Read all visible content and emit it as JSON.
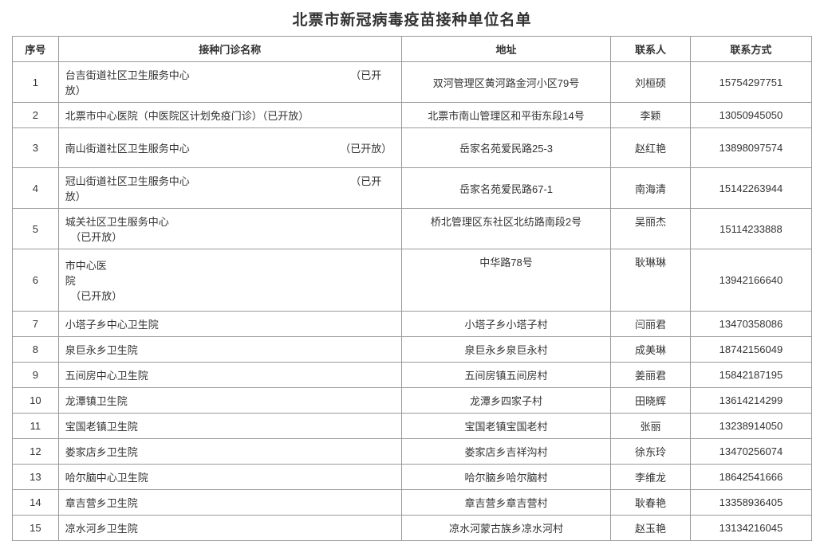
{
  "title": "北票市新冠病毒疫苗接种单位名单",
  "columns": [
    "序号",
    "接种门诊名称",
    "地址",
    "联系人",
    "联系方式"
  ],
  "rows": [
    {
      "seq": "1",
      "rowH": "tall2",
      "name": "台吉街道社区卫生服务中心　　　　　　　　　　　　　　　　（已开放）",
      "addr": "双河管理区黄河路金河小区79号",
      "contact": "刘桓硕",
      "phone": "15754297751"
    },
    {
      "seq": "2",
      "rowH": "",
      "name": "北票市中心医院（中医院区计划免疫门诊）（已开放）",
      "addr": "北票市南山管理区和平街东段14号",
      "contact": "李颖",
      "phone": "13050945050"
    },
    {
      "seq": "3",
      "rowH": "tall2",
      "name": "南山街道社区卫生服务中心　　　　　　　　　　　　　　　（已开放）",
      "addr": "岳家名苑爱民路25-3",
      "contact": "赵红艳",
      "phone": "13898097574"
    },
    {
      "seq": "4",
      "rowH": "tall2",
      "name": "冠山街道社区卫生服务中心　　　　　　　　　　　　　　　　（已开放）",
      "addr": "岳家名苑爱民路67-1",
      "contact": "南海清",
      "phone": "15142263944"
    },
    {
      "seq": "5",
      "rowH": "tall2",
      "name": "城关社区卫生服务中心　　　　　　　　　　　　　　　　　　　　　　　\n　（已开放）",
      "addr": "桥北管理区东社区北纺路南段2号",
      "contact": "吴丽杰",
      "phone": "15114233888"
    },
    {
      "seq": "6",
      "rowH": "tall3",
      "name": "市中心医\n院　　　　　　　　　　　　　　　　　　　　　　　　　　　　　\n　（已开放）",
      "addr": "中华路78号",
      "contact": "耿琳琳",
      "phone": "13942166640"
    },
    {
      "seq": "7",
      "rowH": "",
      "name": "小塔子乡中心卫生院",
      "addr": "小塔子乡小塔子村",
      "contact": "闫丽君",
      "phone": "13470358086"
    },
    {
      "seq": "8",
      "rowH": "",
      "name": "泉巨永乡卫生院",
      "addr": "泉巨永乡泉巨永村",
      "contact": "成美琳",
      "phone": "18742156049"
    },
    {
      "seq": "9",
      "rowH": "",
      "name": "五间房中心卫生院",
      "addr": "五间房镇五间房村",
      "contact": "姜丽君",
      "phone": "15842187195"
    },
    {
      "seq": "10",
      "rowH": "",
      "name": "龙潭镇卫生院",
      "addr": "龙潭乡四家子村",
      "contact": "田晓辉",
      "phone": "13614214299"
    },
    {
      "seq": "11",
      "rowH": "",
      "name": "宝国老镇卫生院",
      "addr": "宝国老镇宝国老村",
      "contact": "张丽",
      "phone": "13238914050"
    },
    {
      "seq": "12",
      "rowH": "",
      "name": "娄家店乡卫生院",
      "addr": "娄家店乡吉祥沟村",
      "contact": "徐东玲",
      "phone": "13470256074"
    },
    {
      "seq": "13",
      "rowH": "",
      "name": "哈尔脑中心卫生院",
      "addr": "哈尔脑乡哈尔脑村",
      "contact": "李维龙",
      "phone": "18642541666"
    },
    {
      "seq": "14",
      "rowH": "",
      "name": "章吉营乡卫生院",
      "addr": "章吉营乡章吉营村",
      "contact": "耿春艳",
      "phone": "13358936405"
    },
    {
      "seq": "15",
      "rowH": "",
      "name": "凉水河乡卫生院",
      "addr": "凉水河蒙古族乡凉水河村",
      "contact": "赵玉艳",
      "phone": "13134216045"
    }
  ],
  "style": {
    "bg": "#ffffff",
    "border": "#9a9a9a",
    "text": "#333333",
    "font_size_body": 13,
    "font_size_title": 19,
    "addr_vtop_rows": [
      "5",
      "6"
    ]
  }
}
